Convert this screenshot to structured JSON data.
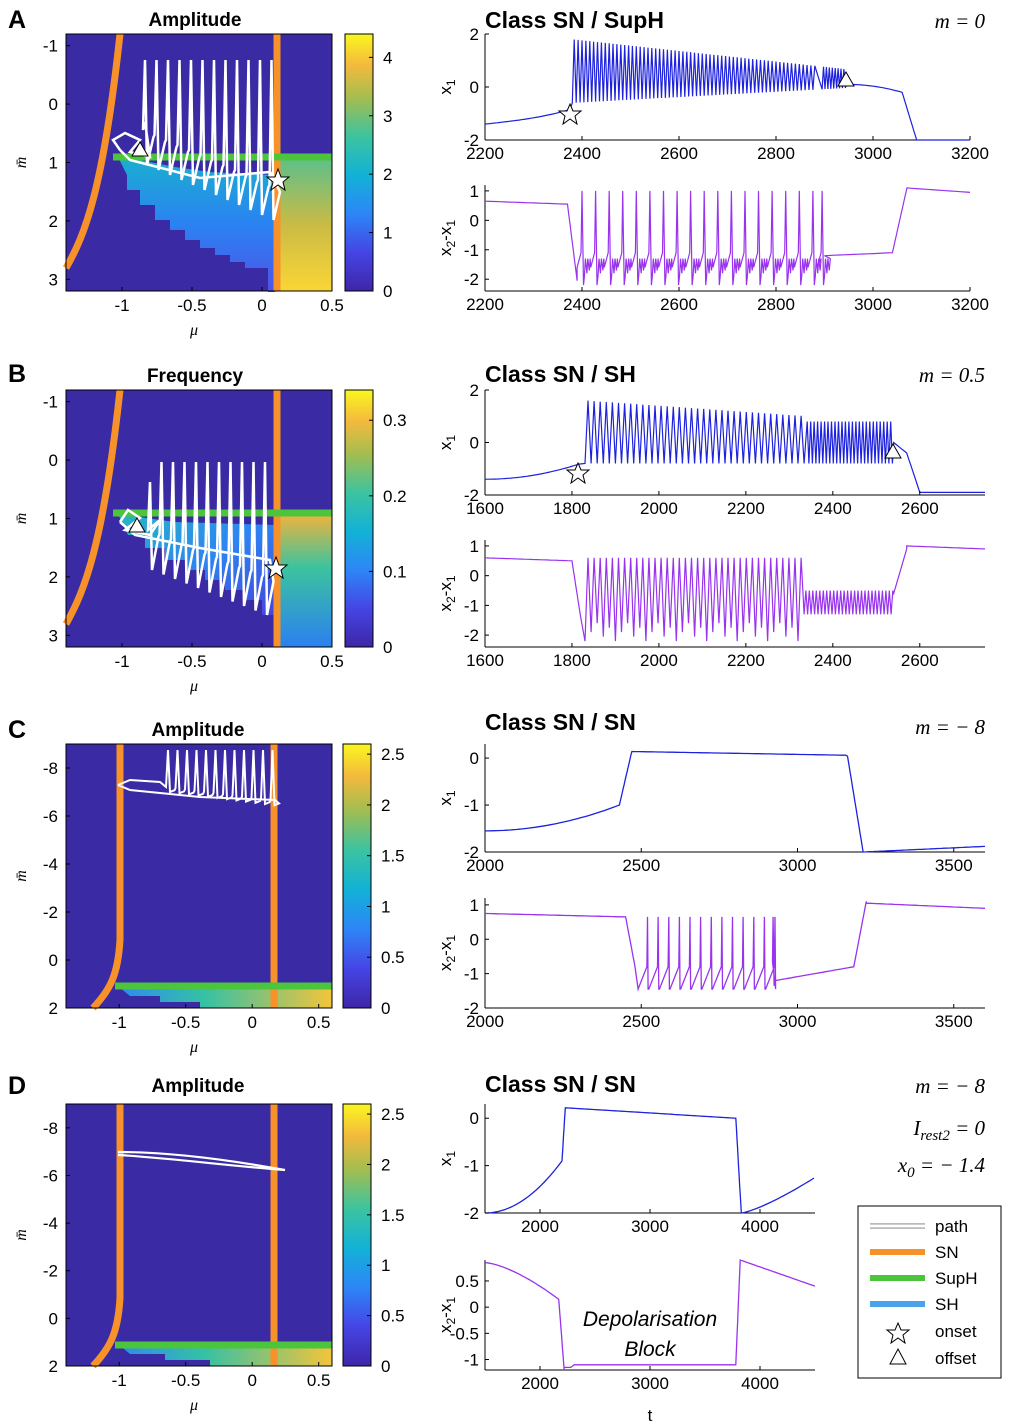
{
  "colors": {
    "sn": "#f7922a",
    "suph": "#4cc43c",
    "sh": "#4aa3ea",
    "x1_trace": "#1e22dd",
    "x2x1_trace": "#9933ee",
    "heatmap_bg": "#3a2aa3",
    "path": "#ffffff"
  },
  "legend": {
    "items": [
      {
        "label": "path",
        "symbol": "path-line"
      },
      {
        "label": "SN",
        "symbol": "sn-line"
      },
      {
        "label": "SupH",
        "symbol": "suph-line"
      },
      {
        "label": "SH",
        "symbol": "sh-line"
      },
      {
        "label": "onset",
        "symbol": "star-icon"
      },
      {
        "label": "offset",
        "symbol": "triangle-icon"
      }
    ]
  },
  "chart_data": [
    {
      "id": "A-map",
      "panel": "A",
      "type": "heatmap",
      "title": "Amplitude",
      "xlabel": "μ",
      "ylabel": "m̄",
      "xlim": [
        -1.4,
        0.5
      ],
      "ylim": [
        -1.2,
        3.2
      ],
      "y_reversed": true,
      "xticks": [
        "-1",
        "-0.5",
        "0",
        "0.5"
      ],
      "yticks": [
        "-1",
        "0",
        "1",
        "2",
        "3"
      ],
      "colorbar": {
        "range": [
          0,
          4.4
        ],
        "ticks": [
          "0",
          "1",
          "2",
          "3",
          "4"
        ]
      },
      "curves": {
        "SN_vertical_mu": 0.2,
        "SN_curve_start_mu": -1.0,
        "SupH_m": 1.0
      },
      "markers": {
        "onset": {
          "mu": 0.2,
          "m": 1.35
        },
        "offset": {
          "mu": -0.85,
          "m": 0.9
        }
      }
    },
    {
      "id": "A-x1",
      "panel": "A",
      "type": "line",
      "title": "Class SN / SupH",
      "ylabel": "x1",
      "xlim": [
        2200,
        3200
      ],
      "ylim": [
        -2,
        2
      ],
      "xticks": [
        "2200",
        "2400",
        "2600",
        "2800",
        "3000",
        "3200"
      ],
      "yticks": [
        "-2",
        "0",
        "2"
      ],
      "param": "m = 0",
      "markers": {
        "onset_t": 2375,
        "offset_t": 2945
      }
    },
    {
      "id": "A-x2x1",
      "panel": "A",
      "type": "line",
      "ylabel": "x2-x1",
      "xlim": [
        2200,
        3200
      ],
      "ylim": [
        -2.4,
        1.2
      ],
      "xticks": [
        "2200",
        "2400",
        "2600",
        "2800",
        "3000",
        "3200"
      ],
      "yticks": [
        "-2",
        "-1",
        "0",
        "1"
      ]
    },
    {
      "id": "B-map",
      "panel": "B",
      "type": "heatmap",
      "title": "Frequency",
      "xlabel": "μ",
      "ylabel": "m̄",
      "xlim": [
        -1.4,
        0.5
      ],
      "ylim": [
        -1.2,
        3.2
      ],
      "y_reversed": true,
      "xticks": [
        "-1",
        "-0.5",
        "0",
        "0.5"
      ],
      "yticks": [
        "-1",
        "0",
        "1",
        "2",
        "3"
      ],
      "colorbar": {
        "range": [
          0,
          0.34
        ],
        "ticks": [
          "0",
          "0.1",
          "0.2",
          "0.3"
        ]
      },
      "markers": {
        "onset": {
          "mu": 0.2,
          "m": 1.95
        },
        "offset": {
          "mu": -0.88,
          "m": 1.3
        }
      }
    },
    {
      "id": "B-x1",
      "panel": "B",
      "type": "line",
      "title": "Class SN / SH",
      "ylabel": "x1",
      "xlim": [
        1600,
        2750
      ],
      "ylim": [
        -2,
        2
      ],
      "xticks": [
        "1600",
        "1800",
        "2000",
        "2200",
        "2400",
        "2600"
      ],
      "yticks": [
        "-2",
        "0",
        "2"
      ],
      "param": "m = 0.5",
      "markers": {
        "onset_t": 1820,
        "offset_t": 2560
      }
    },
    {
      "id": "B-x2x1",
      "panel": "B",
      "type": "line",
      "ylabel": "x2-x1",
      "xlim": [
        1600,
        2750
      ],
      "ylim": [
        -2.4,
        1.2
      ],
      "xticks": [
        "1600",
        "1800",
        "2000",
        "2200",
        "2400",
        "2600"
      ],
      "yticks": [
        "-2",
        "-1",
        "0",
        "1"
      ]
    },
    {
      "id": "C-map",
      "panel": "C",
      "type": "heatmap",
      "title": "Amplitude",
      "xlabel": "μ",
      "ylabel": "m̄",
      "xlim": [
        -1.4,
        0.6
      ],
      "ylim": [
        -9,
        2
      ],
      "y_reversed": false,
      "xticks": [
        "-1",
        "-0.5",
        "0",
        "0.5"
      ],
      "yticks": [
        "-8",
        "-6",
        "-4",
        "-2",
        "0",
        "2"
      ],
      "colorbar": {
        "range": [
          0,
          2.6
        ],
        "ticks": [
          "0",
          "0.5",
          "1",
          "1.5",
          "2",
          "2.5"
        ]
      }
    },
    {
      "id": "C-x1",
      "panel": "C",
      "type": "line",
      "title": "Class SN / SN",
      "ylabel": "x1",
      "xlim": [
        2000,
        3600
      ],
      "ylim": [
        -2,
        0.3
      ],
      "xticks": [
        "2000",
        "2500",
        "3000",
        "3500"
      ],
      "yticks": [
        "-2",
        "-1",
        "0"
      ],
      "param": "m = − 8"
    },
    {
      "id": "C-x2x1",
      "panel": "C",
      "type": "line",
      "ylabel": "x2-x1",
      "xlim": [
        2000,
        3600
      ],
      "ylim": [
        -2,
        1.2
      ],
      "xticks": [
        "2000",
        "2500",
        "3000",
        "3500"
      ],
      "yticks": [
        "-2",
        "-1",
        "0",
        "1"
      ]
    },
    {
      "id": "D-map",
      "panel": "D",
      "type": "heatmap",
      "title": "Amplitude",
      "xlabel": "μ",
      "ylabel": "m̄",
      "xlim": [
        -1.4,
        0.6
      ],
      "ylim": [
        -9,
        2
      ],
      "y_reversed": false,
      "xticks": [
        "-1",
        "-0.5",
        "0",
        "0.5"
      ],
      "yticks": [
        "-8",
        "-6",
        "-4",
        "-2",
        "0",
        "2"
      ],
      "colorbar": {
        "range": [
          0,
          2.6
        ],
        "ticks": [
          "0",
          "0.5",
          "1",
          "1.5",
          "2",
          "2.5"
        ]
      }
    },
    {
      "id": "D-x1",
      "panel": "D",
      "type": "line",
      "title": "Class SN / SN",
      "ylabel": "x1",
      "xlim": [
        1500,
        4500
      ],
      "ylim": [
        -2,
        0.3
      ],
      "xticks": [
        "2000",
        "3000",
        "4000"
      ],
      "yticks": [
        "-2",
        "-1",
        "0"
      ],
      "params": [
        "m = − 8",
        "I_rest2 = 0",
        "x0 = − 1.4"
      ]
    },
    {
      "id": "D-x2x1",
      "panel": "D",
      "type": "line",
      "ylabel": "x2-x1",
      "xlabel": "t",
      "xlim": [
        1500,
        4500
      ],
      "ylim": [
        -1.2,
        0.9
      ],
      "xticks": [
        "2000",
        "3000",
        "4000"
      ],
      "yticks": [
        "-1",
        "-0.5",
        "0",
        "0.5"
      ],
      "annotation": [
        "Depolarisation",
        "Block"
      ]
    }
  ]
}
